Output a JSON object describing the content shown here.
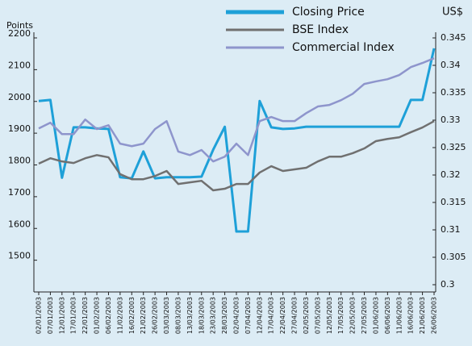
{
  "chart_data": {
    "type": "line",
    "ylabel": "Points",
    "y2label": "US$",
    "categories": [
      "02/01/2003",
      "07/01/2003",
      "12/01/2003",
      "17/01/2003",
      "22/01/2003",
      "01/02/2003",
      "06/02/2003",
      "11/02/2003",
      "16/02/2003",
      "21/02/2003",
      "26/02/2003",
      "03/03/2003",
      "08/03/2003",
      "13/03/2003",
      "18/03/2003",
      "23/03/2003",
      "28/03/2003",
      "02/04/2003",
      "07/04/2003",
      "12/04/2003",
      "17/04/2003",
      "22/04/2003",
      "27/04/2003",
      "02/05/2003",
      "07/05/2003",
      "12/05/2003",
      "17/05/2003",
      "22/05/2003",
      "27/05/2003",
      "01/06/2003",
      "06/06/2003",
      "11/06/2003",
      "16/06/2003",
      "21/06/2003",
      "26/06/2003"
    ],
    "series": [
      {
        "name": "Closing Price",
        "color": "#1ea0d8",
        "axis": "y2",
        "values": [
          0.3335,
          0.3337,
          0.3195,
          0.3287,
          0.3287,
          0.3285,
          0.3284,
          0.3196,
          0.3194,
          0.3243,
          0.3194,
          0.3196,
          0.3196,
          0.3196,
          0.3197,
          0.3246,
          0.3288,
          0.3097,
          0.3097,
          0.3335,
          0.3287,
          0.3284,
          0.3285,
          0.3288,
          0.3288,
          0.3288,
          0.3288,
          0.3288,
          0.3288,
          0.3288,
          0.3288,
          0.3288,
          0.3337,
          0.3337,
          0.3431
        ]
      },
      {
        "name": "BSE Index",
        "color": "#707070",
        "values": [
          1804,
          1821,
          1811,
          1806,
          1821,
          1831,
          1824,
          1771,
          1755,
          1755,
          1765,
          1781,
          1740,
          1745,
          1750,
          1720,
          1725,
          1740,
          1740,
          1776,
          1796,
          1781,
          1786,
          1791,
          1811,
          1826,
          1826,
          1837,
          1852,
          1875,
          1882,
          1887,
          1903,
          1918,
          1938
        ]
      },
      {
        "name": "Commercial Index",
        "color": "#8e95cc",
        "values": [
          1915,
          1933,
          1897,
          1897,
          1943,
          1913,
          1925,
          1867,
          1859,
          1867,
          1913,
          1938,
          1842,
          1831,
          1847,
          1811,
          1826,
          1867,
          1831,
          1938,
          1951,
          1938,
          1938,
          1963,
          1984,
          1989,
          2004,
          2024,
          2055,
          2063,
          2070,
          2083,
          2108,
          2121,
          2136
        ]
      }
    ],
    "ylim": [
      1400,
      2200
    ],
    "yticks": [
      1500,
      1600,
      1700,
      1800,
      1900,
      2000,
      2100,
      2200
    ],
    "y2lim": [
      0.3,
      0.345
    ],
    "y2ticks": [
      0.3,
      0.305,
      0.31,
      0.315,
      0.32,
      0.325,
      0.33,
      0.335,
      0.34,
      0.345
    ]
  }
}
